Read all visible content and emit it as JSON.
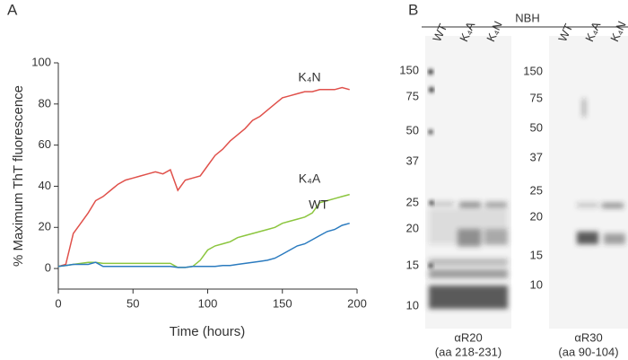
{
  "chart_data": {
    "type": "line",
    "panel_label": "A",
    "xlabel": "Time (hours)",
    "ylabel": "% Maximum ThT fluorescence",
    "x": [
      0,
      5,
      10,
      15,
      20,
      25,
      30,
      35,
      40,
      45,
      50,
      55,
      60,
      65,
      70,
      75,
      80,
      85,
      90,
      95,
      100,
      105,
      110,
      115,
      120,
      125,
      130,
      135,
      140,
      145,
      150,
      155,
      160,
      165,
      170,
      175,
      180,
      185,
      190,
      195
    ],
    "series": [
      {
        "name": "K₄N",
        "color": "#e0514b",
        "values": [
          1,
          2,
          17,
          22,
          27,
          33,
          35,
          38,
          41,
          43,
          44,
          45,
          46,
          47,
          46,
          48,
          38,
          43,
          44,
          45,
          50,
          55,
          58,
          62,
          65,
          68,
          72,
          74,
          77,
          80,
          83,
          84,
          85,
          86,
          86,
          87,
          87,
          87,
          88,
          87
        ]
      },
      {
        "name": "K₄A",
        "color": "#8cc63f",
        "values": [
          1,
          1.5,
          2,
          2.5,
          3,
          3,
          2.5,
          2.5,
          2.5,
          2.5,
          2.5,
          2.5,
          2.5,
          2.5,
          2.5,
          2.5,
          0.5,
          0.5,
          1,
          4,
          9,
          11,
          12,
          13,
          15,
          16,
          17,
          18,
          19,
          20,
          22,
          23,
          24,
          25,
          27,
          32,
          33,
          34,
          35,
          36
        ]
      },
      {
        "name": "WT",
        "color": "#2b7bbf",
        "values": [
          1,
          1.5,
          2,
          2,
          2,
          3,
          1,
          1,
          1,
          1,
          1,
          1,
          1,
          1,
          1,
          1,
          0.5,
          0.5,
          1,
          1,
          1,
          1,
          1.5,
          1.5,
          2,
          2.5,
          3,
          3.5,
          4,
          5,
          7,
          9,
          11,
          12,
          14,
          16,
          18,
          19,
          21,
          22
        ]
      }
    ],
    "xlim": [
      0,
      200
    ],
    "xticks": [
      0,
      50,
      100,
      150,
      200
    ],
    "ylim": [
      -10,
      100
    ],
    "yticks": [
      0,
      20,
      40,
      60,
      80,
      100
    ]
  },
  "blot": {
    "panel_label": "B",
    "group_label": "NBH",
    "panels": [
      {
        "lanes": [
          "WT",
          "K₄A",
          "K₄N"
        ],
        "markers": [
          150,
          75,
          50,
          37,
          25,
          20,
          15,
          10
        ],
        "antibody": "αR20",
        "epitope": "(aa 218-231)"
      },
      {
        "lanes": [
          "WT",
          "K₄A",
          "K₄N"
        ],
        "markers": [
          150,
          75,
          50,
          37,
          25,
          20,
          15,
          10
        ],
        "antibody": "αR30",
        "epitope": "(aa 90-104)"
      }
    ]
  }
}
